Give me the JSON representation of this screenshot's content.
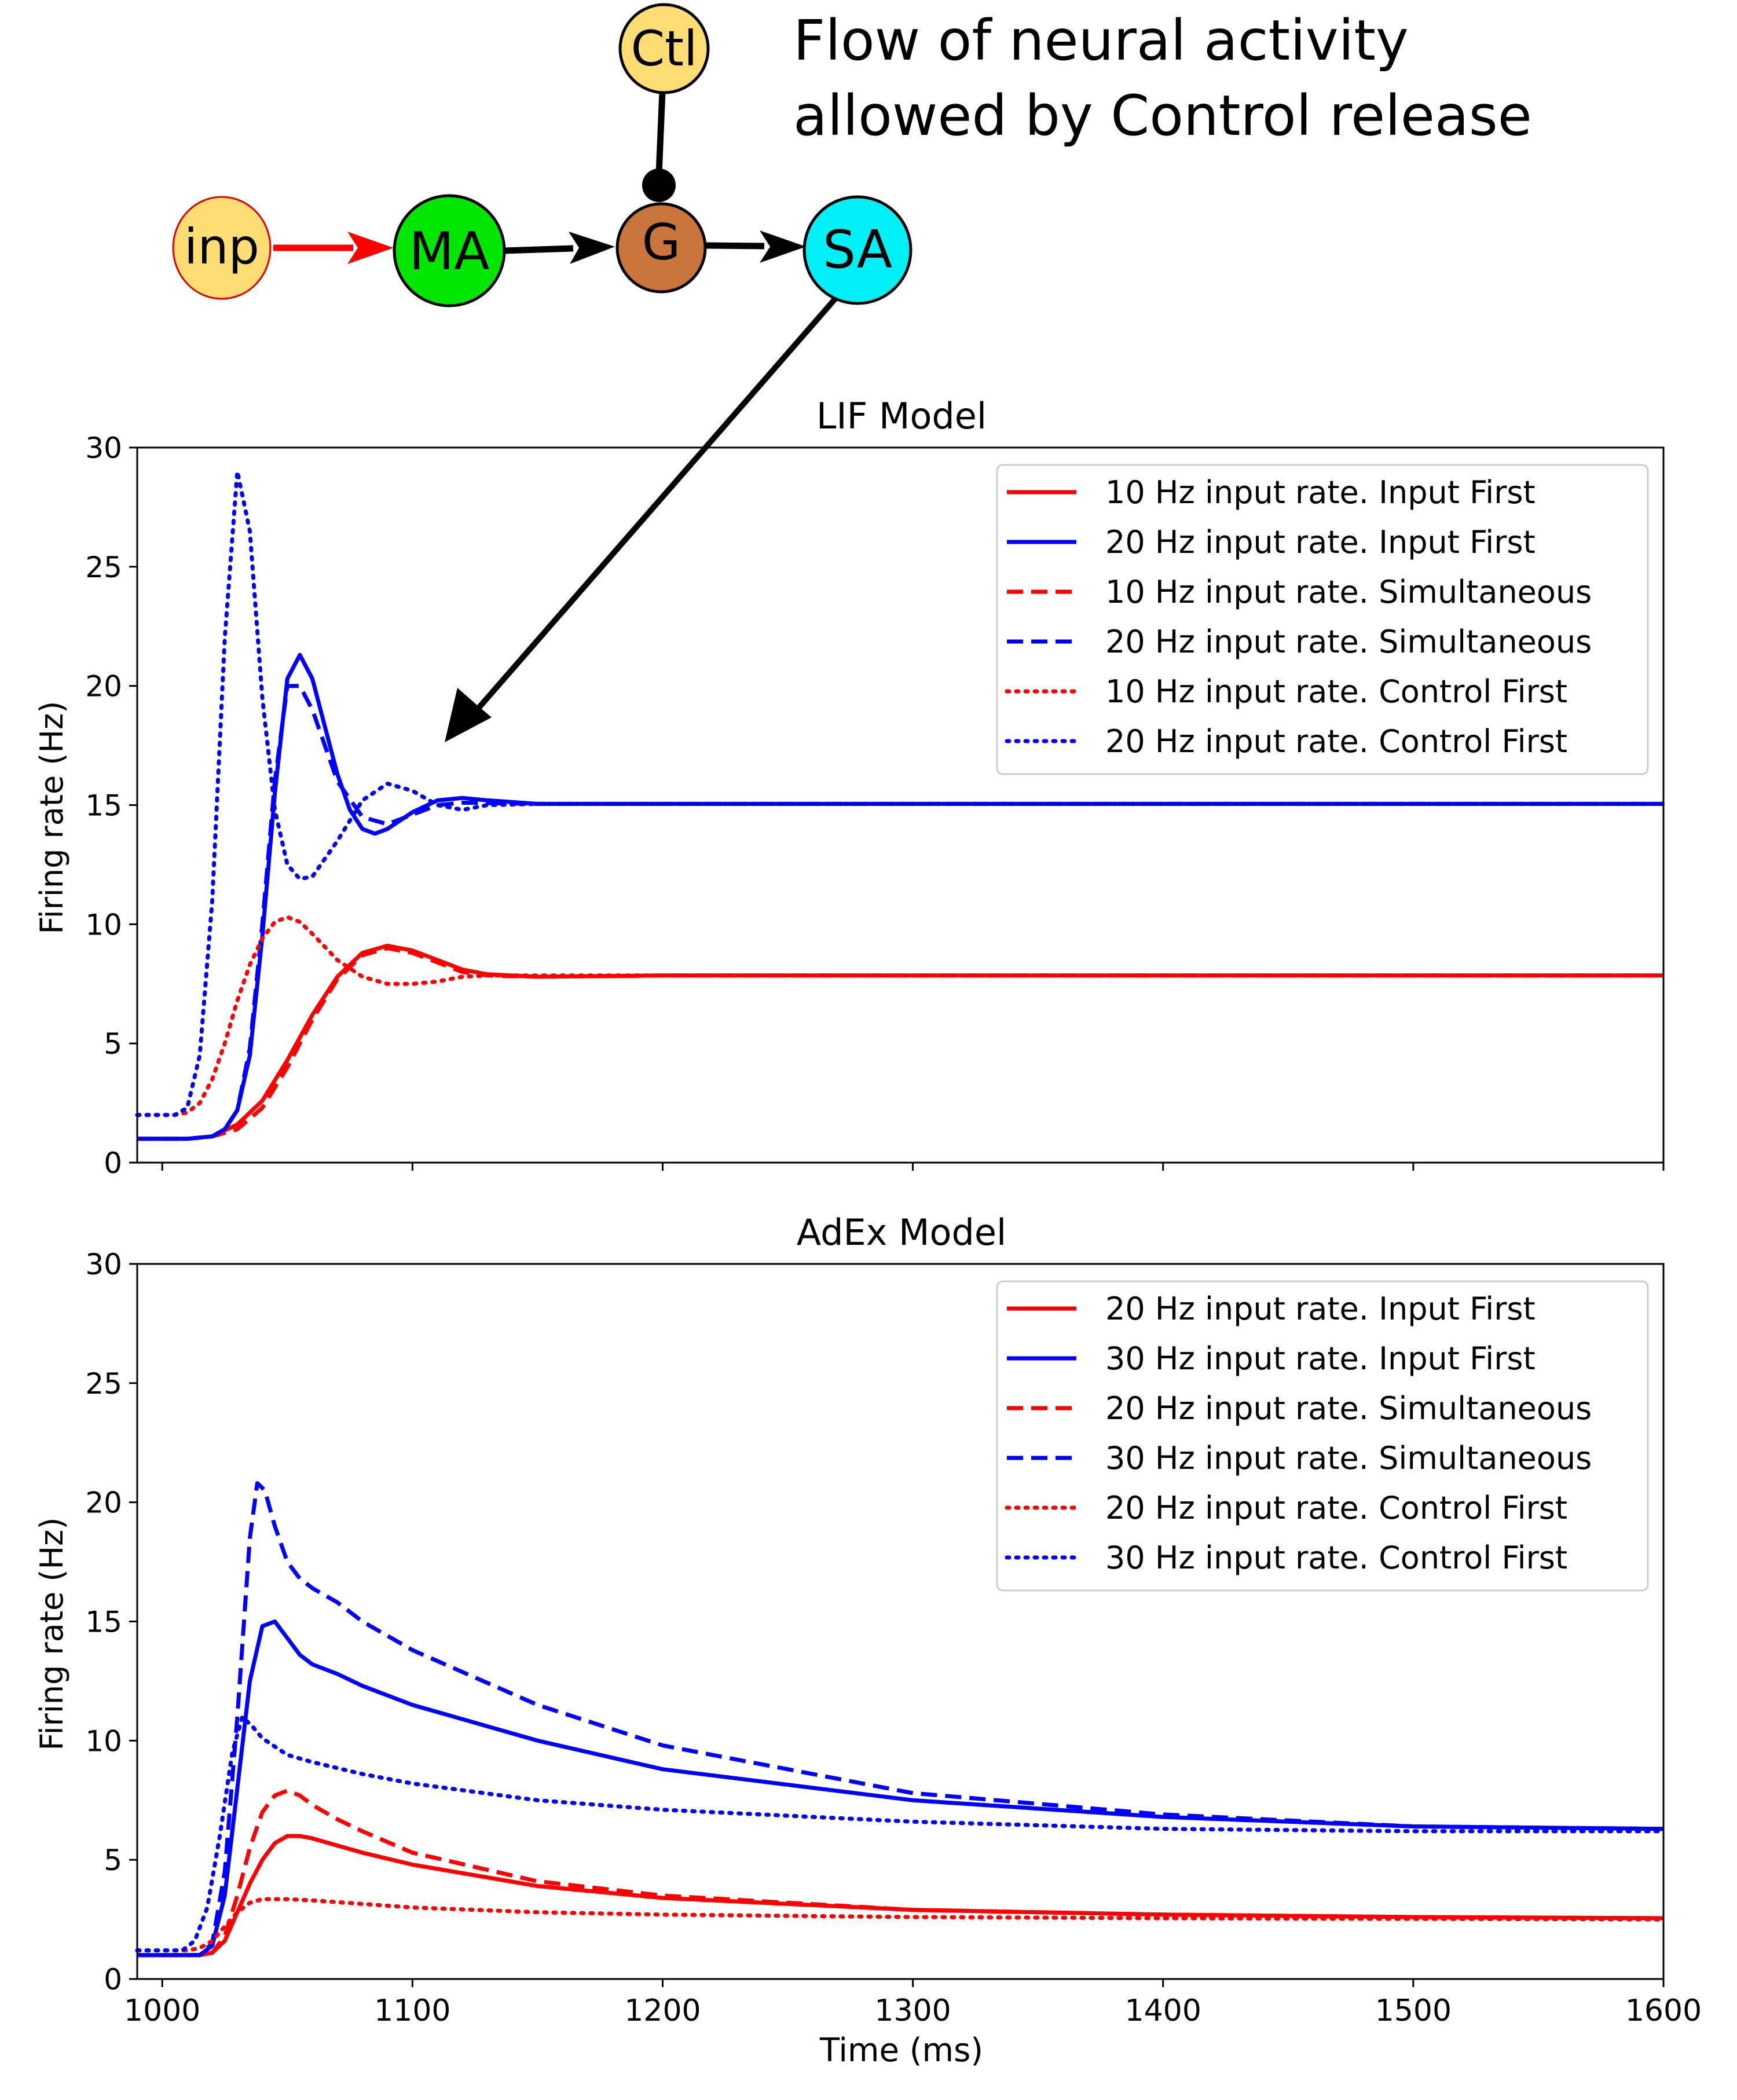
{
  "diagram": {
    "nodes": [
      {
        "id": "inp",
        "label": "inp",
        "fill": "#ffdd72",
        "stroke": "#e00000"
      },
      {
        "id": "ma",
        "label": "MA",
        "fill": "#00e600",
        "stroke": "#000000"
      },
      {
        "id": "g",
        "label": "G",
        "fill": "#c8743a",
        "stroke": "#000000"
      },
      {
        "id": "sa",
        "label": "SA",
        "fill": "#00f0f5",
        "stroke": "#000000"
      },
      {
        "id": "ctl",
        "label": "Ctl",
        "fill": "#ffdd72",
        "stroke": "#000000"
      }
    ],
    "caption_lines": [
      "Flow of neural activity",
      "allowed by Control release"
    ]
  },
  "chart_data": [
    {
      "type": "line",
      "title": "LIF Model",
      "xlabel": "",
      "ylabel": "Firing rate (Hz)",
      "xlim": [
        990,
        1600
      ],
      "ylim": [
        0,
        30
      ],
      "yticks": [
        "0",
        "5",
        "10",
        "15",
        "20",
        "25",
        "30"
      ],
      "xticks": [
        "",
        "",
        "",
        "",
        "",
        "",
        ""
      ],
      "legend": "top-right",
      "series": [
        {
          "name": "10 Hz input rate. Input First",
          "color": "#ff0000",
          "style": "solid",
          "x": [
            990,
            1010,
            1020,
            1030,
            1040,
            1050,
            1060,
            1070,
            1080,
            1090,
            1100,
            1110,
            1120,
            1130,
            1150,
            1200,
            1300,
            1600
          ],
          "y": [
            1,
            1,
            1.1,
            1.6,
            2.6,
            4.3,
            6.2,
            7.8,
            8.8,
            9.1,
            8.9,
            8.5,
            8.1,
            7.9,
            7.8,
            7.85,
            7.85,
            7.85
          ]
        },
        {
          "name": "20 Hz input rate. Input First",
          "color": "#0000ff",
          "style": "solid",
          "x": [
            990,
            1010,
            1020,
            1025,
            1030,
            1035,
            1040,
            1045,
            1050,
            1055,
            1060,
            1065,
            1070,
            1075,
            1080,
            1085,
            1090,
            1100,
            1110,
            1120,
            1130,
            1150,
            1200,
            1600
          ],
          "y": [
            1,
            1,
            1.1,
            1.4,
            2.2,
            4.5,
            9.5,
            15.5,
            20.3,
            21.3,
            20.3,
            18.3,
            16.3,
            14.8,
            14.0,
            13.8,
            14.0,
            14.7,
            15.2,
            15.3,
            15.2,
            15.05,
            15.05,
            15.05
          ]
        },
        {
          "name": "10 Hz input rate. Simultaneous",
          "color": "#ff0000",
          "style": "dashed",
          "x": [
            990,
            1010,
            1020,
            1030,
            1040,
            1050,
            1060,
            1070,
            1080,
            1090,
            1100,
            1110,
            1120,
            1130,
            1150,
            1200,
            1600
          ],
          "y": [
            1,
            1,
            1.1,
            1.4,
            2.3,
            4.0,
            6.0,
            7.7,
            8.7,
            9.0,
            8.8,
            8.4,
            8.0,
            7.85,
            7.8,
            7.85,
            7.85
          ]
        },
        {
          "name": "20 Hz input rate. Simultaneous",
          "color": "#0000ff",
          "style": "dashed",
          "x": [
            990,
            1010,
            1020,
            1025,
            1030,
            1035,
            1040,
            1045,
            1050,
            1055,
            1060,
            1065,
            1070,
            1080,
            1090,
            1100,
            1110,
            1120,
            1150,
            1200,
            1600
          ],
          "y": [
            1,
            1,
            1.1,
            1.4,
            2.2,
            4.8,
            10.0,
            16.0,
            20.0,
            20.0,
            19.0,
            17.5,
            16.0,
            14.5,
            14.2,
            14.6,
            15.0,
            15.1,
            15.05,
            15.05,
            15.05
          ]
        },
        {
          "name": "10 Hz input rate. Control First",
          "color": "#ff0000",
          "style": "dotted",
          "x": [
            990,
            1005,
            1010,
            1015,
            1020,
            1025,
            1030,
            1035,
            1040,
            1045,
            1050,
            1055,
            1060,
            1070,
            1080,
            1090,
            1100,
            1110,
            1120,
            1130,
            1150,
            1200,
            1600
          ],
          "y": [
            2,
            2,
            2.1,
            2.5,
            3.5,
            5.0,
            6.8,
            8.3,
            9.4,
            10.1,
            10.3,
            10.1,
            9.6,
            8.5,
            7.8,
            7.5,
            7.5,
            7.6,
            7.8,
            7.85,
            7.85,
            7.85,
            7.85
          ]
        },
        {
          "name": "20 Hz input rate. Control First",
          "color": "#0000ff",
          "style": "dotted",
          "x": [
            990,
            1005,
            1010,
            1015,
            1020,
            1025,
            1030,
            1035,
            1040,
            1045,
            1050,
            1055,
            1060,
            1070,
            1080,
            1090,
            1100,
            1110,
            1120,
            1130,
            1150,
            1200,
            1600
          ],
          "y": [
            2,
            2,
            2.3,
            4.5,
            11.0,
            22.0,
            29.0,
            26.5,
            19.5,
            14.8,
            12.5,
            11.9,
            12.0,
            13.5,
            15.2,
            15.9,
            15.6,
            15.0,
            14.8,
            15.0,
            15.05,
            15.05,
            15.05
          ]
        }
      ]
    },
    {
      "type": "line",
      "title": "AdEx Model",
      "xlabel": "Time (ms)",
      "ylabel": "Firing rate (Hz)",
      "xlim": [
        990,
        1600
      ],
      "ylim": [
        0,
        30
      ],
      "yticks": [
        "0",
        "5",
        "10",
        "15",
        "20",
        "25",
        "30"
      ],
      "xticks": [
        "1000",
        "1100",
        "1200",
        "1300",
        "1400",
        "1500",
        "1600"
      ],
      "legend": "top-right",
      "series": [
        {
          "name": "20 Hz input rate. Input First",
          "color": "#ff0000",
          "style": "solid",
          "x": [
            990,
            1015,
            1020,
            1025,
            1030,
            1035,
            1040,
            1045,
            1050,
            1055,
            1060,
            1070,
            1080,
            1100,
            1150,
            1200,
            1300,
            1400,
            1500,
            1600
          ],
          "y": [
            1,
            1,
            1.1,
            1.6,
            2.8,
            4.0,
            5.0,
            5.7,
            6.0,
            6.0,
            5.9,
            5.6,
            5.3,
            4.8,
            3.9,
            3.4,
            2.9,
            2.7,
            2.6,
            2.55
          ]
        },
        {
          "name": "30 Hz input rate. Input First",
          "color": "#0000ff",
          "style": "solid",
          "x": [
            990,
            1015,
            1020,
            1025,
            1030,
            1035,
            1040,
            1045,
            1050,
            1055,
            1060,
            1070,
            1080,
            1100,
            1150,
            1200,
            1300,
            1400,
            1500,
            1600
          ],
          "y": [
            1,
            1,
            1.4,
            3.5,
            8.0,
            12.5,
            14.8,
            15.0,
            14.3,
            13.6,
            13.2,
            12.8,
            12.3,
            11.5,
            10.0,
            8.8,
            7.5,
            6.8,
            6.4,
            6.3
          ]
        },
        {
          "name": "20 Hz input rate. Simultaneous",
          "color": "#ff0000",
          "style": "dashed",
          "x": [
            990,
            1015,
            1020,
            1025,
            1030,
            1035,
            1040,
            1045,
            1050,
            1055,
            1060,
            1070,
            1080,
            1100,
            1150,
            1200,
            1300,
            1400,
            1500,
            1600
          ],
          "y": [
            1,
            1,
            1.1,
            1.8,
            3.5,
            5.5,
            7.0,
            7.7,
            7.9,
            7.7,
            7.3,
            6.7,
            6.2,
            5.3,
            4.1,
            3.5,
            2.9,
            2.7,
            2.6,
            2.55
          ]
        },
        {
          "name": "30 Hz input rate. Simultaneous",
          "color": "#0000ff",
          "style": "dashed",
          "x": [
            990,
            1015,
            1020,
            1025,
            1030,
            1035,
            1038,
            1041,
            1045,
            1050,
            1055,
            1060,
            1070,
            1080,
            1100,
            1150,
            1200,
            1300,
            1400,
            1500,
            1600
          ],
          "y": [
            1,
            1,
            1.5,
            4.5,
            11.0,
            18.5,
            20.8,
            20.5,
            19.0,
            17.5,
            16.8,
            16.4,
            15.8,
            15.0,
            13.8,
            11.5,
            9.8,
            7.8,
            6.9,
            6.4,
            6.3
          ]
        },
        {
          "name": "20 Hz input rate. Control First",
          "color": "#ff0000",
          "style": "dotted",
          "x": [
            990,
            1010,
            1015,
            1020,
            1025,
            1030,
            1035,
            1040,
            1050,
            1060,
            1080,
            1100,
            1150,
            1200,
            1300,
            1400,
            1600
          ],
          "y": [
            1.2,
            1.2,
            1.3,
            1.6,
            2.2,
            2.8,
            3.2,
            3.35,
            3.35,
            3.3,
            3.15,
            3.0,
            2.8,
            2.7,
            2.6,
            2.55,
            2.5
          ]
        },
        {
          "name": "30 Hz input rate. Control First",
          "color": "#0000ff",
          "style": "dotted",
          "x": [
            990,
            1008,
            1013,
            1018,
            1023,
            1028,
            1032,
            1036,
            1040,
            1050,
            1060,
            1080,
            1100,
            1150,
            1200,
            1300,
            1400,
            1500,
            1600
          ],
          "y": [
            1.2,
            1.2,
            1.6,
            3.0,
            6.0,
            9.5,
            11.0,
            10.6,
            10.1,
            9.4,
            9.1,
            8.6,
            8.2,
            7.5,
            7.1,
            6.6,
            6.3,
            6.2,
            6.2
          ]
        }
      ]
    }
  ]
}
